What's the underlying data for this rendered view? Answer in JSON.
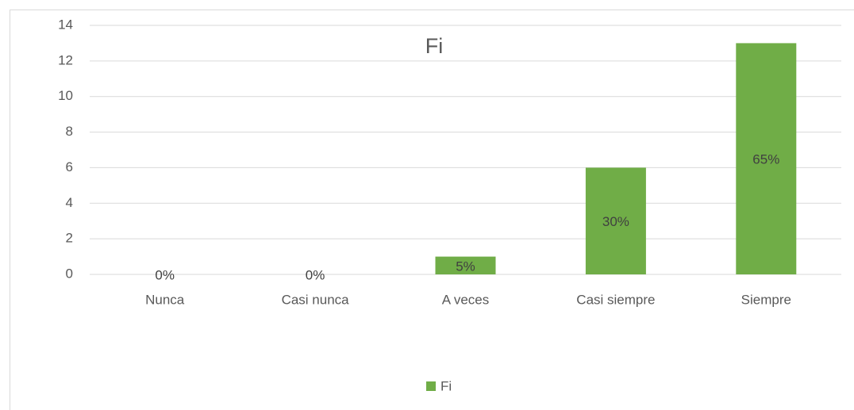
{
  "chart_data": {
    "type": "bar",
    "title": "Fi",
    "categories": [
      "Nunca",
      "Casi nunca",
      "A veces",
      "Casi siempre",
      "Siempre"
    ],
    "series": [
      {
        "name": "Fi",
        "color": "#70ad47",
        "values": [
          0,
          0,
          1,
          6,
          13
        ],
        "value_labels": [
          "0%",
          "0%",
          "5%",
          "30%",
          "65%"
        ]
      }
    ],
    "ylim": [
      0,
      14
    ],
    "yticks": [
      0,
      2,
      4,
      6,
      8,
      10,
      12,
      14
    ],
    "grid": true,
    "legend": "bottom"
  }
}
